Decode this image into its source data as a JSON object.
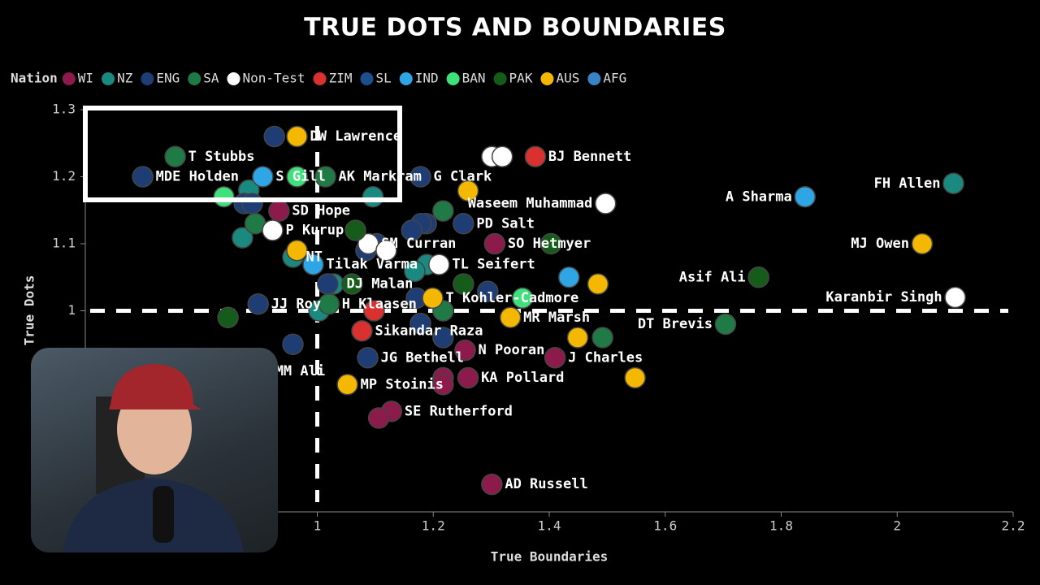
{
  "chart_data": {
    "type": "scatter",
    "title": "TRUE DOTS AND BOUNDARIES",
    "x_label": "True Boundaries",
    "y_label": "True Dots",
    "legend_title": "Nation",
    "xlim": [
      0.6,
      2.2
    ],
    "xticks": [
      1,
      1.2,
      1.4,
      1.6,
      1.8,
      2,
      2.2
    ],
    "ylim": [
      0.7,
      1.3
    ],
    "yticks": [
      1,
      1.1,
      1.2,
      1.3
    ],
    "ref_x": 1,
    "ref_y": 1,
    "series": [
      {
        "name": "WI",
        "color": "#8c1b4c",
        "x": [
          0.934,
          1.306,
          1.255,
          1.41,
          1.26,
          1.217,
          1.217,
          1.128,
          1.106,
          1.301
        ],
        "values": [
          1.149,
          1.1,
          0.941,
          0.93,
          0.9,
          0.9,
          0.89,
          0.85,
          0.84,
          0.741
        ],
        "labels": [
          "SD Hope",
          "SO Hetmyer",
          "N Pooran",
          "J Charles",
          "KA Pollard",
          null,
          null,
          "SE Rutherford",
          null,
          "AD Russell"
        ]
      },
      {
        "name": "NZ",
        "color": "#1a8a80",
        "x": [
          2.097,
          1.096,
          0.882,
          0.871,
          0.958,
          1.028,
          1.189,
          1.168,
          1.003
        ],
        "values": [
          1.19,
          1.17,
          1.18,
          1.109,
          1.08,
          1.04,
          1.069,
          1.059,
          1.0
        ],
        "labels": [
          "FH Allen",
          null,
          null,
          null,
          "NT",
          "DJ Malan",
          null,
          null,
          null
        ]
      },
      {
        "name": "ENG",
        "color": "#1f3d75",
        "x": [
          0.699,
          0.926,
          1.178,
          0.874,
          0.888,
          1.252,
          1.188,
          1.179,
          1.163,
          1.102,
          1.084,
          1.171,
          1.178,
          1.294,
          0.898,
          1.217,
          1.087,
          0.958,
          0.905,
          1.018
        ],
        "values": [
          1.2,
          1.26,
          1.2,
          1.16,
          1.16,
          1.13,
          1.13,
          1.13,
          1.12,
          1.1,
          1.09,
          1.019,
          0.981,
          1.029,
          1.01,
          0.96,
          0.93,
          0.95,
          0.91,
          1.04
        ],
        "labels": [
          "MDE Holden",
          null,
          "G Clark",
          null,
          null,
          "PD Salt",
          null,
          null,
          null,
          null,
          null,
          null,
          null,
          null,
          "JJ Roy",
          null,
          "JG Bethell",
          null,
          "MM Ali",
          null
        ]
      },
      {
        "name": "SA",
        "color": "#1f7a45",
        "x": [
          0.755,
          1.014,
          1.217,
          0.893,
          1.704,
          1.02,
          1.217,
          1.492
        ],
        "values": [
          1.23,
          1.2,
          1.149,
          1.13,
          0.98,
          1.01,
          1.0,
          0.96
        ],
        "labels": [
          "T Stubbs",
          "AK Markram",
          null,
          null,
          "DT Brevis",
          "H Klaasen",
          null,
          null
        ]
      },
      {
        "name": "Non-Test",
        "color": "#ffffff",
        "x": [
          1.301,
          1.319,
          1.497,
          2.1,
          0.923,
          1.088,
          1.21,
          1.119
        ],
        "values": [
          1.23,
          1.23,
          1.16,
          1.02,
          1.12,
          1.1,
          1.069,
          1.09
        ],
        "labels": [
          null,
          null,
          "Waseem Muhammad",
          "Karanbir Singh",
          "P Kurup",
          "SM Curran",
          "TL Seifert",
          null
        ]
      },
      {
        "name": "ZIM",
        "color": "#d93030",
        "x": [
          1.376,
          1.077,
          1.098
        ],
        "values": [
          1.23,
          0.97,
          1.0
        ],
        "labels": [
          "BJ Bennett",
          "Sikandar Raza",
          null
        ]
      },
      {
        "name": "SL",
        "color": "#1d4f8f",
        "x": [],
        "values": [],
        "labels": []
      },
      {
        "name": "IND",
        "color": "#2ea6e6",
        "x": [
          0.906,
          1.841,
          0.993,
          1.434
        ],
        "values": [
          1.2,
          1.17,
          1.069,
          1.05
        ],
        "labels": [
          "S Gill",
          "A Sharma",
          "Tilak Varma",
          null
        ]
      },
      {
        "name": "BAN",
        "color": "#3fe07c",
        "x": [
          0.965,
          0.839,
          1.354
        ],
        "values": [
          1.2,
          1.17,
          1.019
        ],
        "labels": [
          null,
          null,
          null
        ]
      },
      {
        "name": "PAK",
        "color": "#155c1a",
        "x": [
          1.761,
          1.066,
          1.403,
          1.252,
          0.846,
          1.06
        ],
        "values": [
          1.05,
          1.12,
          1.1,
          1.04,
          0.99,
          1.04
        ],
        "labels": [
          "Asif Ali",
          null,
          null,
          null,
          null,
          null
        ]
      },
      {
        "name": "AUS",
        "color": "#f5b800",
        "x": [
          0.965,
          1.26,
          2.043,
          1.199,
          1.484,
          1.333,
          1.449,
          1.052,
          1.548,
          0.965
        ],
        "values": [
          1.26,
          1.179,
          1.1,
          1.019,
          1.04,
          0.99,
          0.96,
          0.89,
          0.9,
          1.09
        ],
        "labels": [
          "DW Lawrence",
          null,
          "MJ Owen",
          "T Kohler-Cadmore",
          null,
          "MR Marsh",
          null,
          "MP Stoinis",
          null,
          null
        ]
      },
      {
        "name": "AFG",
        "color": "#3a82c6",
        "x": [],
        "values": [],
        "labels": []
      }
    ]
  }
}
